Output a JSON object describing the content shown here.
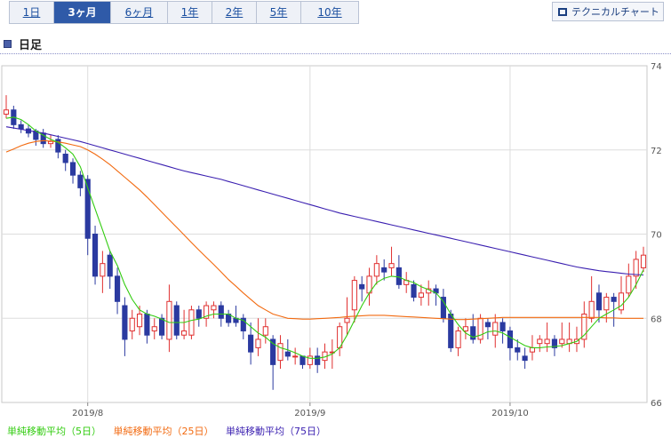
{
  "tabs": [
    {
      "label": "1日",
      "active": false
    },
    {
      "label": "3ヶ月",
      "active": true
    },
    {
      "label": "6ヶ月",
      "active": false
    },
    {
      "label": "1年",
      "active": false
    },
    {
      "label": "2年",
      "active": false
    },
    {
      "label": "5年",
      "active": false
    },
    {
      "label": "10年",
      "active": false
    }
  ],
  "technical_button": "テクニカルチャート",
  "period_title": "日足",
  "colors": {
    "up": "#e03030",
    "down": "#2b3aa0",
    "ma5": "#33cc11",
    "ma25": "#f26a10",
    "ma75": "#3a1fb0"
  },
  "chart_data": {
    "type": "candlestick",
    "ylim": [
      66,
      74
    ],
    "yticks": [
      "74",
      "72",
      "70",
      "68",
      "66"
    ],
    "xticks": [
      {
        "index": 11,
        "label": "2019/8"
      },
      {
        "index": 41,
        "label": "2019/9"
      },
      {
        "index": 68,
        "label": "2019/10"
      }
    ],
    "legend": [
      {
        "name": "単純移動平均（5日）",
        "color": "#33cc11"
      },
      {
        "name": "単純移動平均（25日）",
        "color": "#f26a10"
      },
      {
        "name": "単純移動平均（75日）",
        "color": "#3a1fb0"
      }
    ],
    "candles": [
      [
        72.85,
        72.95,
        72.75,
        73.3
      ],
      [
        72.95,
        72.6,
        72.5,
        73.05
      ],
      [
        72.6,
        72.5,
        72.4,
        72.7
      ],
      [
        72.5,
        72.4,
        72.3,
        72.6
      ],
      [
        72.45,
        72.25,
        72.1,
        72.5
      ],
      [
        72.4,
        72.15,
        72.05,
        72.5
      ],
      [
        72.15,
        72.2,
        72.05,
        72.35
      ],
      [
        72.25,
        71.95,
        71.8,
        72.35
      ],
      [
        71.9,
        71.7,
        71.5,
        72.0
      ],
      [
        71.7,
        71.4,
        71.2,
        71.8
      ],
      [
        71.4,
        71.1,
        70.9,
        71.5
      ],
      [
        71.3,
        69.9,
        69.5,
        71.4
      ],
      [
        70.0,
        69.0,
        68.8,
        70.2
      ],
      [
        69.0,
        69.3,
        68.6,
        69.6
      ],
      [
        69.5,
        69.0,
        68.7,
        69.6
      ],
      [
        69.0,
        68.4,
        68.1,
        69.2
      ],
      [
        68.3,
        67.5,
        67.1,
        68.5
      ],
      [
        67.7,
        68.0,
        67.5,
        68.2
      ],
      [
        67.8,
        68.1,
        67.6,
        68.3
      ],
      [
        68.1,
        67.6,
        67.4,
        68.2
      ],
      [
        67.7,
        67.8,
        67.5,
        68.0
      ],
      [
        68.0,
        67.6,
        67.5,
        68.1
      ],
      [
        67.5,
        68.4,
        67.2,
        68.8
      ],
      [
        68.3,
        67.6,
        67.5,
        68.4
      ],
      [
        67.6,
        67.7,
        67.5,
        68.2
      ],
      [
        67.6,
        68.2,
        67.5,
        68.3
      ],
      [
        68.2,
        68.0,
        67.8,
        68.3
      ],
      [
        68.0,
        68.3,
        67.8,
        68.4
      ],
      [
        68.2,
        68.3,
        68.0,
        68.4
      ],
      [
        68.3,
        68.0,
        67.8,
        68.4
      ],
      [
        68.1,
        67.9,
        67.8,
        68.2
      ],
      [
        68.0,
        67.9,
        67.8,
        68.3
      ],
      [
        68.0,
        67.7,
        67.5,
        68.1
      ],
      [
        67.6,
        67.2,
        66.9,
        67.9
      ],
      [
        67.3,
        67.5,
        67.1,
        68.0
      ],
      [
        67.6,
        67.8,
        67.4,
        68.0
      ],
      [
        67.5,
        66.9,
        66.3,
        67.6
      ],
      [
        67.0,
        67.4,
        66.8,
        67.6
      ],
      [
        67.2,
        67.1,
        67.0,
        67.5
      ],
      [
        67.1,
        67.1,
        66.9,
        67.3
      ],
      [
        67.1,
        66.9,
        66.8,
        67.1
      ],
      [
        66.9,
        67.1,
        66.8,
        67.3
      ],
      [
        67.1,
        66.9,
        66.7,
        67.3
      ],
      [
        67.0,
        67.2,
        66.8,
        67.4
      ],
      [
        67.2,
        67.2,
        66.8,
        67.5
      ],
      [
        67.3,
        67.8,
        67.1,
        67.9
      ],
      [
        67.9,
        68.0,
        67.6,
        68.5
      ],
      [
        68.2,
        68.9,
        67.9,
        69.0
      ],
      [
        68.8,
        68.7,
        68.4,
        69.0
      ],
      [
        68.6,
        69.0,
        68.3,
        69.2
      ],
      [
        69.0,
        69.3,
        68.8,
        69.5
      ],
      [
        69.2,
        69.1,
        68.9,
        69.4
      ],
      [
        69.2,
        69.3,
        69.0,
        69.7
      ],
      [
        69.2,
        68.8,
        68.7,
        69.5
      ],
      [
        68.8,
        68.9,
        68.6,
        69.1
      ],
      [
        68.8,
        68.5,
        68.4,
        68.9
      ],
      [
        68.5,
        68.6,
        68.3,
        68.8
      ],
      [
        68.6,
        68.7,
        68.3,
        68.9
      ],
      [
        68.7,
        68.6,
        68.3,
        68.8
      ],
      [
        68.5,
        68.0,
        67.9,
        68.7
      ],
      [
        68.1,
        67.3,
        67.2,
        68.2
      ],
      [
        67.3,
        67.7,
        67.1,
        67.8
      ],
      [
        67.7,
        67.8,
        67.5,
        68.0
      ],
      [
        67.8,
        67.5,
        67.4,
        68.1
      ],
      [
        67.5,
        68.0,
        67.4,
        68.1
      ],
      [
        67.9,
        67.8,
        67.5,
        68.0
      ],
      [
        67.6,
        67.9,
        67.3,
        68.1
      ],
      [
        67.9,
        67.7,
        67.4,
        68.0
      ],
      [
        67.7,
        67.3,
        67.0,
        67.8
      ],
      [
        67.3,
        67.2,
        67.0,
        67.5
      ],
      [
        67.1,
        67.0,
        66.8,
        67.3
      ],
      [
        67.2,
        67.3,
        67.0,
        67.6
      ],
      [
        67.4,
        67.5,
        67.2,
        67.6
      ],
      [
        67.4,
        67.5,
        67.2,
        67.9
      ],
      [
        67.5,
        67.3,
        67.1,
        67.6
      ],
      [
        67.4,
        67.5,
        67.3,
        67.9
      ],
      [
        67.4,
        67.5,
        67.2,
        67.9
      ],
      [
        67.4,
        67.5,
        67.2,
        67.8
      ],
      [
        67.5,
        68.1,
        67.3,
        68.4
      ],
      [
        68.0,
        68.4,
        67.9,
        69.0
      ],
      [
        68.6,
        68.2,
        67.9,
        68.8
      ],
      [
        68.2,
        68.5,
        67.9,
        68.6
      ],
      [
        68.5,
        68.4,
        67.8,
        68.6
      ],
      [
        68.2,
        68.6,
        68.1,
        69.0
      ],
      [
        68.6,
        69.0,
        68.5,
        69.3
      ],
      [
        69.0,
        69.4,
        68.7,
        69.6
      ],
      [
        69.2,
        69.5,
        69.1,
        69.7
      ]
    ],
    "ma5": [
      72.75,
      72.78,
      72.72,
      72.6,
      72.45,
      72.35,
      72.25,
      72.18,
      72.05,
      71.9,
      71.6,
      71.1,
      70.6,
      70.1,
      69.6,
      69.25,
      68.8,
      68.45,
      68.2,
      68.1,
      68.05,
      67.98,
      67.9,
      67.9,
      67.9,
      67.95,
      67.98,
      68.05,
      68.1,
      68.1,
      68.1,
      68.0,
      67.95,
      67.8,
      67.65,
      67.55,
      67.4,
      67.3,
      67.25,
      67.18,
      67.1,
      67.05,
      67.05,
      67.08,
      67.15,
      67.3,
      67.6,
      67.95,
      68.3,
      68.6,
      68.85,
      68.95,
      69.0,
      68.98,
      68.9,
      68.85,
      68.75,
      68.68,
      68.6,
      68.4,
      68.1,
      67.85,
      67.65,
      67.55,
      67.6,
      67.68,
      67.7,
      67.65,
      67.55,
      67.45,
      67.35,
      67.3,
      67.3,
      67.32,
      67.33,
      67.35,
      67.4,
      67.45,
      67.6,
      67.8,
      68.0,
      68.1,
      68.2,
      68.3,
      68.5,
      68.8,
      69.15
    ],
    "ma25": [
      71.95,
      72.02,
      72.1,
      72.16,
      72.2,
      72.22,
      72.21,
      72.19,
      72.16,
      72.12,
      72.08,
      72.0,
      71.9,
      71.78,
      71.65,
      71.5,
      71.35,
      71.2,
      71.05,
      70.88,
      70.7,
      70.52,
      70.34,
      70.16,
      69.98,
      69.8,
      69.62,
      69.45,
      69.28,
      69.1,
      68.92,
      68.76,
      68.6,
      68.45,
      68.3,
      68.2,
      68.1,
      68.05,
      68.0,
      67.99,
      67.98,
      67.98,
      67.99,
      68.0,
      68.01,
      68.02,
      68.04,
      68.05,
      68.06,
      68.07,
      68.07,
      68.07,
      68.06,
      68.05,
      68.04,
      68.03,
      68.02,
      68.01,
      68.0,
      67.99,
      67.98,
      67.97,
      67.97,
      67.98,
      67.99,
      68.0,
      68.01,
      68.02,
      68.02,
      68.02,
      68.02,
      68.02,
      68.02,
      68.02,
      68.02,
      68.02,
      68.02,
      68.02,
      68.02,
      68.02,
      68.02,
      68.01,
      68.01,
      68.0,
      68.0,
      68.0,
      68.0
    ],
    "ma75": [
      72.55,
      72.52,
      72.49,
      72.46,
      72.43,
      72.4,
      72.36,
      72.32,
      72.28,
      72.24,
      72.2,
      72.15,
      72.1,
      72.05,
      72.0,
      71.95,
      71.9,
      71.85,
      71.8,
      71.75,
      71.7,
      71.65,
      71.6,
      71.55,
      71.5,
      71.46,
      71.42,
      71.38,
      71.34,
      71.3,
      71.25,
      71.2,
      71.15,
      71.1,
      71.05,
      71.0,
      70.95,
      70.9,
      70.85,
      70.8,
      70.75,
      70.7,
      70.65,
      70.6,
      70.55,
      70.5,
      70.46,
      70.42,
      70.38,
      70.34,
      70.3,
      70.26,
      70.22,
      70.18,
      70.14,
      70.1,
      70.06,
      70.02,
      69.98,
      69.94,
      69.9,
      69.86,
      69.82,
      69.78,
      69.74,
      69.7,
      69.66,
      69.62,
      69.58,
      69.54,
      69.5,
      69.46,
      69.42,
      69.38,
      69.34,
      69.3,
      69.26,
      69.22,
      69.19,
      69.16,
      69.13,
      69.11,
      69.09,
      69.07,
      69.05,
      69.04,
      69.03
    ]
  }
}
